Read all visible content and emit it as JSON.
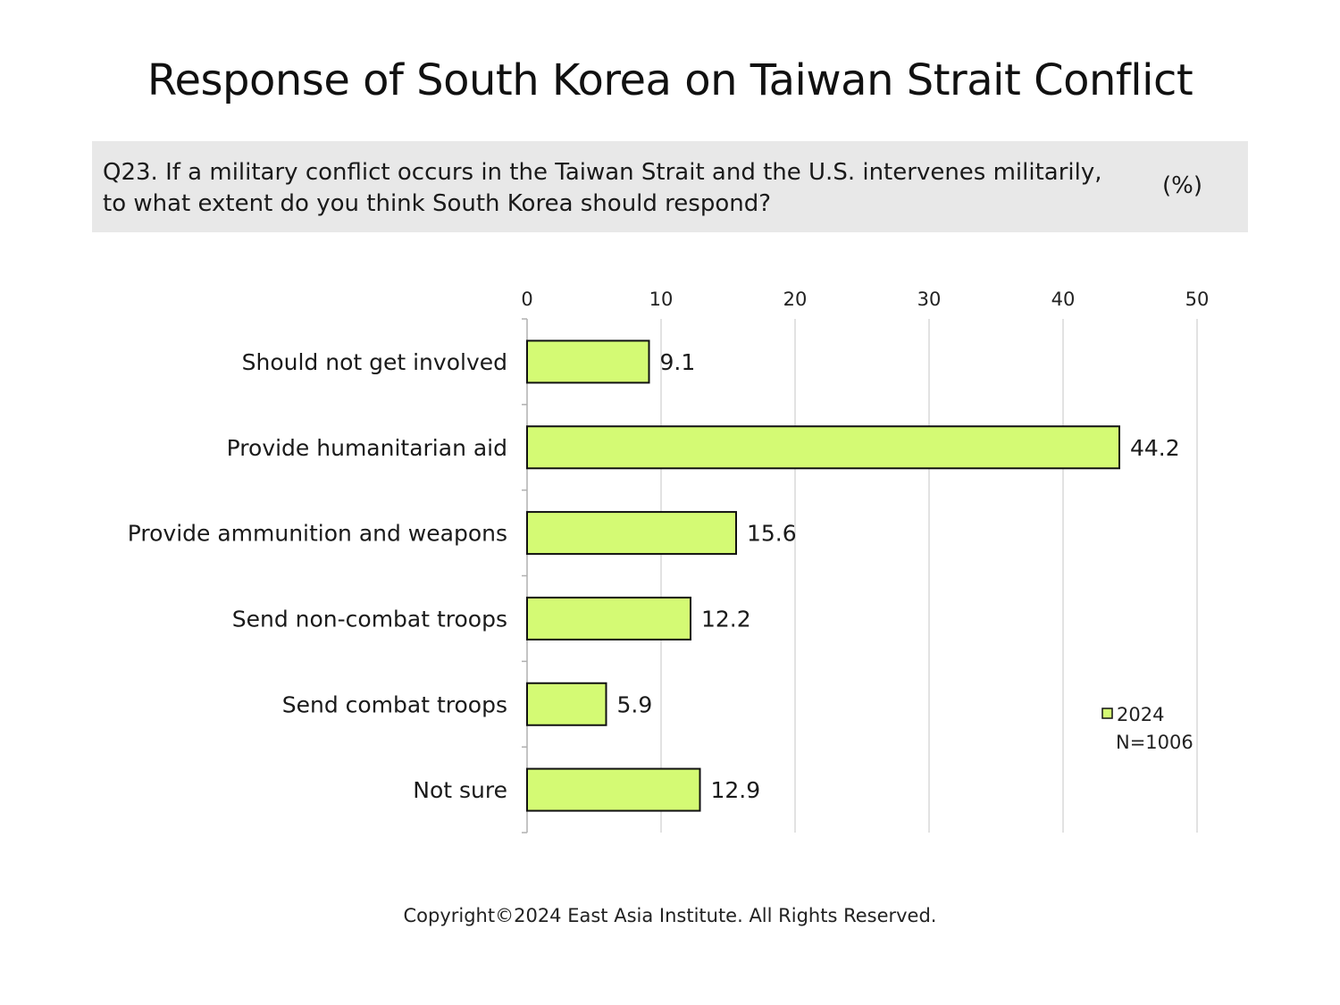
{
  "title": "Response of South Korea on Taiwan Strait Conflict",
  "question": {
    "line1": "Q23. If a military conflict occurs in the Taiwan Strait and the U.S. intervenes militarily,",
    "line2": "to what extent do you think South Korea should respond?",
    "unit": "(%)"
  },
  "footer": "Copyright©2024 East Asia Institute. All Rights Reserved.",
  "colors": {
    "bar_fill": "#d4fa74",
    "bar_stroke": "#111111",
    "grid": "#d9d9d9",
    "axis": "#b0b0b0",
    "question_bg": "#e8e8e8"
  },
  "chart_data": {
    "type": "bar",
    "orientation": "horizontal",
    "categories": [
      "Should not get involved",
      "Provide humanitarian aid",
      "Provide ammunition and weapons",
      "Send non-combat troops",
      "Send combat troops",
      "Not sure"
    ],
    "values": [
      9.1,
      44.2,
      15.6,
      12.2,
      5.9,
      12.9
    ],
    "data_labels": [
      "9.1",
      "44.2",
      "15.6",
      "12.2",
      "5.9",
      "12.9"
    ],
    "xlim": [
      0,
      50
    ],
    "xticks": [
      0,
      10,
      20,
      30,
      40,
      50
    ],
    "xtick_labels": [
      "0",
      "10",
      "20",
      "30",
      "40",
      "50"
    ],
    "x_axis_position": "top",
    "grid": true,
    "legend": {
      "position": "bottom-right",
      "entries": [
        "2024"
      ],
      "note": "N=1006"
    }
  }
}
